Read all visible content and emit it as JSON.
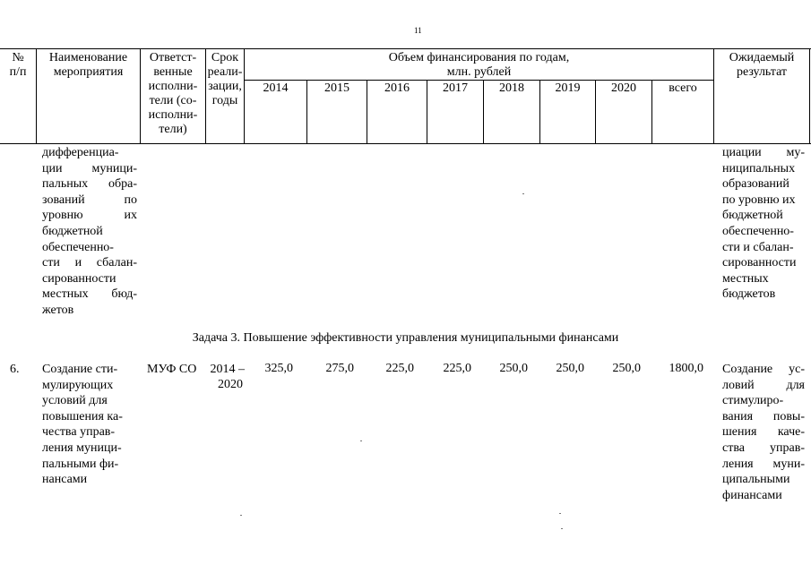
{
  "page_number": "11",
  "header": {
    "num": "№\nп/п",
    "name": "Наименование\nмероприятия",
    "resp": "Ответст-\nвенные\nисполни-\nтели (со-\nисполни-\nтели)",
    "term": "Срок\nреали-\nзации,\nгоды",
    "funding_line1": "Объем финансирования по годам,",
    "funding_line2": "млн. рублей",
    "years": [
      "2014",
      "2015",
      "2016",
      "2017",
      "2018",
      "2019",
      "2020",
      "всего"
    ],
    "result": "Ожидаемый\nрезультат"
  },
  "continued_row": {
    "name_lines": [
      "дифференциа-",
      "ции муници-",
      "пальных обра-",
      "зований по",
      "уровню их",
      "бюджетной",
      "обеспеченно-",
      "сти и сбалан-",
      "сированности",
      "местных бюд-",
      "жетов"
    ],
    "result_lines": [
      "циации му-",
      "ниципальных",
      "образований",
      "по уровню их",
      "бюджетной",
      "обеспеченно-",
      "сти и сбалан-",
      "сированности",
      "местных",
      "бюджетов"
    ]
  },
  "task_heading": "Задача 3. Повышение эффективности управления муниципальными финансами",
  "row6": {
    "num": "6.",
    "name_lines": [
      "Создание сти-",
      "мулирующих",
      "условий для",
      "повышения ка-",
      "чества управ-",
      "ления муници-",
      "пальными фи-",
      "нансами"
    ],
    "resp": "МУФ СО",
    "term_line1": "2014 –",
    "term_line2": "2020",
    "values": [
      "325,0",
      "275,0",
      "225,0",
      "225,0",
      "250,0",
      "250,0",
      "250,0",
      "1800,0"
    ],
    "result_lines": [
      "Создание ус-",
      "ловий для",
      "стимулиро-",
      "вания повы-",
      "шения каче-",
      "ства управ-",
      "ления муни-",
      "ципальными",
      "финансами"
    ]
  }
}
